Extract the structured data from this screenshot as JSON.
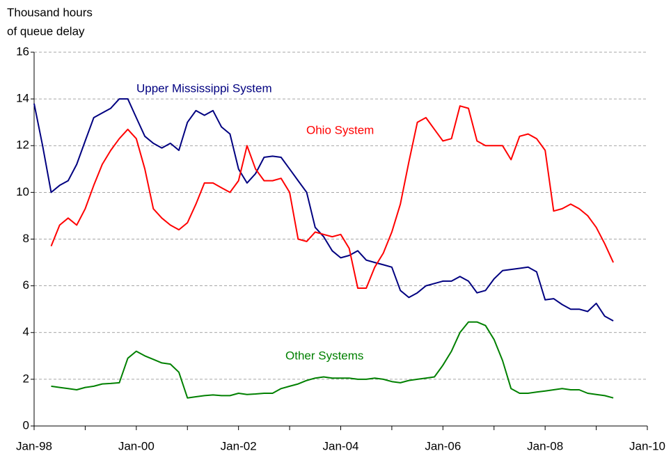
{
  "chart_data": {
    "type": "line",
    "y_label": [
      "Thousand hours",
      "of queue delay"
    ],
    "x": [
      "1998-01",
      "1998-03",
      "1998-05",
      "1998-07",
      "1998-09",
      "1998-11",
      "1999-01",
      "1999-03",
      "1999-05",
      "1999-07",
      "1999-09",
      "1999-11",
      "2000-01",
      "2000-03",
      "2000-05",
      "2000-07",
      "2000-09",
      "2000-11",
      "2001-01",
      "2001-03",
      "2001-05",
      "2001-07",
      "2001-09",
      "2001-11",
      "2002-01",
      "2002-03",
      "2002-05",
      "2002-07",
      "2002-09",
      "2002-11",
      "2003-01",
      "2003-03",
      "2003-05",
      "2003-07",
      "2003-09",
      "2003-11",
      "2004-01",
      "2004-03",
      "2004-05",
      "2004-07",
      "2004-09",
      "2004-11",
      "2005-01",
      "2005-03",
      "2005-05",
      "2005-07",
      "2005-09",
      "2005-11",
      "2006-01",
      "2006-03",
      "2006-05",
      "2006-07",
      "2006-09",
      "2006-11",
      "2007-01",
      "2007-03",
      "2007-05",
      "2007-07",
      "2007-09",
      "2007-11",
      "2008-01",
      "2008-03",
      "2008-05",
      "2008-07",
      "2008-09",
      "2008-11",
      "2009-01",
      "2009-03",
      "2009-05"
    ],
    "series": [
      {
        "name": "Upper Mississippi System",
        "color": "#000080",
        "values": [
          13.8,
          12.0,
          10.0,
          10.3,
          10.5,
          11.2,
          12.2,
          13.2,
          13.4,
          13.6,
          14.0,
          14.0,
          13.2,
          12.4,
          12.1,
          11.9,
          12.1,
          11.8,
          13.0,
          13.5,
          13.3,
          13.5,
          12.8,
          12.5,
          11.0,
          10.4,
          10.8,
          11.5,
          11.55,
          11.5,
          11.0,
          10.5,
          10.0,
          8.5,
          8.1,
          7.5,
          7.2,
          7.3,
          7.5,
          7.1,
          7.0,
          6.9,
          6.8,
          5.8,
          5.5,
          5.7,
          6.0,
          6.1,
          6.2,
          6.2,
          6.4,
          6.2,
          5.7,
          5.8,
          6.3,
          6.65,
          6.7,
          6.75,
          6.8,
          6.6,
          5.4,
          5.45,
          5.2,
          5.0,
          5.0,
          4.9,
          5.25,
          4.7,
          4.5
        ]
      },
      {
        "name": "Ohio System",
        "color": "#ff0000",
        "values": [
          null,
          null,
          7.7,
          8.6,
          8.9,
          8.6,
          9.3,
          10.3,
          11.2,
          11.8,
          12.3,
          12.7,
          12.3,
          11.0,
          9.3,
          8.9,
          8.6,
          8.4,
          8.7,
          9.5,
          10.4,
          10.4,
          10.2,
          10.0,
          10.5,
          12.0,
          11.0,
          10.5,
          10.5,
          10.6,
          10.0,
          8.0,
          7.9,
          8.3,
          8.2,
          8.1,
          8.2,
          7.6,
          5.9,
          5.9,
          6.8,
          7.4,
          8.3,
          9.5,
          11.3,
          13.0,
          13.2,
          12.7,
          12.2,
          12.3,
          13.7,
          13.6,
          12.2,
          12.0,
          12.0,
          12.0,
          11.4,
          12.4,
          12.5,
          12.3,
          11.8,
          9.2,
          9.3,
          9.5,
          9.3,
          9.0,
          8.5,
          7.8,
          7.0
        ]
      },
      {
        "name": "Other Systems",
        "color": "#008000",
        "values": [
          null,
          null,
          1.7,
          1.65,
          1.6,
          1.55,
          1.65,
          1.7,
          1.8,
          1.82,
          1.85,
          2.9,
          3.2,
          3.0,
          2.85,
          2.7,
          2.65,
          2.3,
          1.2,
          1.25,
          1.3,
          1.33,
          1.3,
          1.3,
          1.4,
          1.35,
          1.37,
          1.4,
          1.4,
          1.6,
          1.7,
          1.8,
          1.95,
          2.05,
          2.1,
          2.05,
          2.05,
          2.05,
          2.0,
          2.0,
          2.05,
          2.0,
          1.9,
          1.85,
          1.95,
          2.0,
          2.05,
          2.1,
          2.6,
          3.2,
          4.0,
          4.45,
          4.45,
          4.3,
          3.7,
          2.8,
          1.6,
          1.4,
          1.4,
          1.45,
          1.5,
          1.55,
          1.6,
          1.55,
          1.55,
          1.4,
          1.35,
          1.3,
          1.2
        ]
      }
    ],
    "xlim": [
      "1998-01",
      "2010-01"
    ],
    "xticks": [
      {
        "value": "1998-01",
        "label": "Jan-98"
      },
      {
        "value": "2000-01",
        "label": "Jan-00"
      },
      {
        "value": "2002-01",
        "label": "Jan-02"
      },
      {
        "value": "2004-01",
        "label": "Jan-04"
      },
      {
        "value": "2006-01",
        "label": "Jan-06"
      },
      {
        "value": "2008-01",
        "label": "Jan-08"
      },
      {
        "value": "2010-01",
        "label": "Jan-10"
      }
    ],
    "x_minor_ticks": [
      "1999-01",
      "2001-01",
      "2003-01",
      "2005-01",
      "2007-01",
      "2009-01"
    ],
    "ylim": [
      0,
      16
    ],
    "yticks": [
      0,
      2,
      4,
      6,
      8,
      10,
      12,
      14,
      16
    ],
    "grid": true
  }
}
